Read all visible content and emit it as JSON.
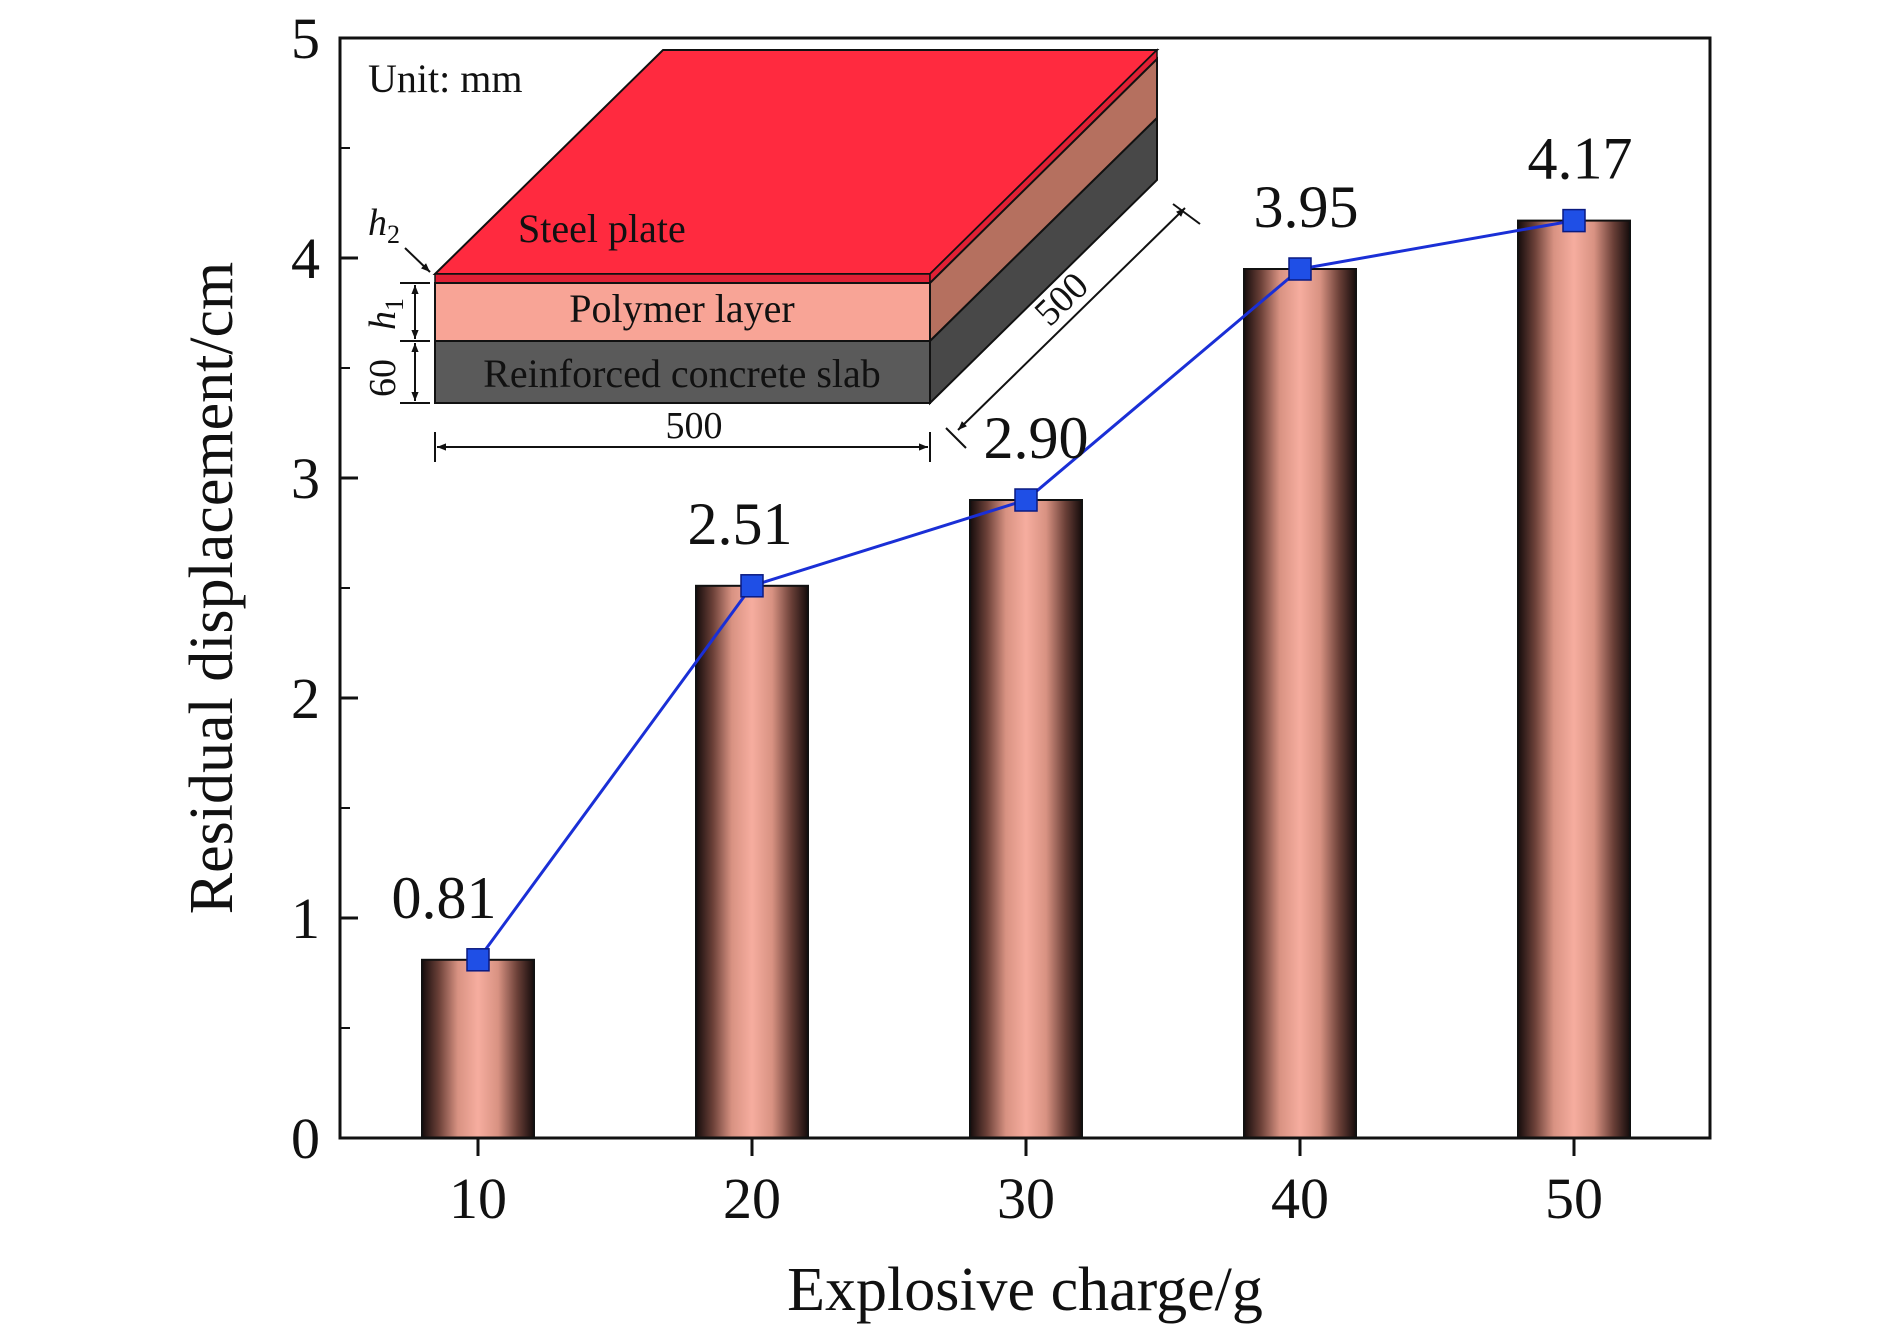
{
  "chart_data": {
    "type": "bar",
    "categories": [
      "10",
      "20",
      "30",
      "40",
      "50"
    ],
    "x": [
      10,
      20,
      30,
      40,
      50
    ],
    "values": [
      0.81,
      2.51,
      2.9,
      3.95,
      4.17
    ],
    "data_labels": [
      "0.81",
      "2.51",
      "2.90",
      "3.95",
      "4.17"
    ],
    "series": [
      {
        "type": "bar",
        "values": [
          0.81,
          2.51,
          2.9,
          3.95,
          4.17
        ]
      },
      {
        "type": "line",
        "values": [
          0.81,
          2.51,
          2.9,
          3.95,
          4.17
        ]
      }
    ],
    "title": "",
    "xlabel": "Explosive charge/g",
    "ylabel": "Residual displacement/cm",
    "ylim": [
      0,
      5
    ],
    "yticks": [
      0,
      1,
      2,
      3,
      4,
      5
    ],
    "ytick_labels": [
      "0",
      "1",
      "2",
      "3",
      "4",
      "5"
    ],
    "grid": false,
    "legend": "none",
    "colors": {
      "bar_center": "#f4a89a",
      "bar_edge": "#1a1010",
      "line": "#1a2fd6",
      "marker": "#1f4fe6"
    }
  },
  "inset": {
    "unit_label": "Unit: mm",
    "steel_label": "Steel plate",
    "polymer_label": "Polymer layer",
    "concrete_label": "Reinforced concrete slab",
    "width_dim": "500",
    "depth_dim": "500",
    "h2_label": "h",
    "h2_sub": "2",
    "h1_label": "h",
    "h1_sub": "1",
    "thickness_dim": "60",
    "colors": {
      "steel_top": "#ff2a3f",
      "steel_side": "#e02035",
      "polymer_front": "#f8a496",
      "polymer_side": "#b5705f",
      "concrete_front": "#5a5a5a",
      "concrete_side": "#484848"
    }
  }
}
